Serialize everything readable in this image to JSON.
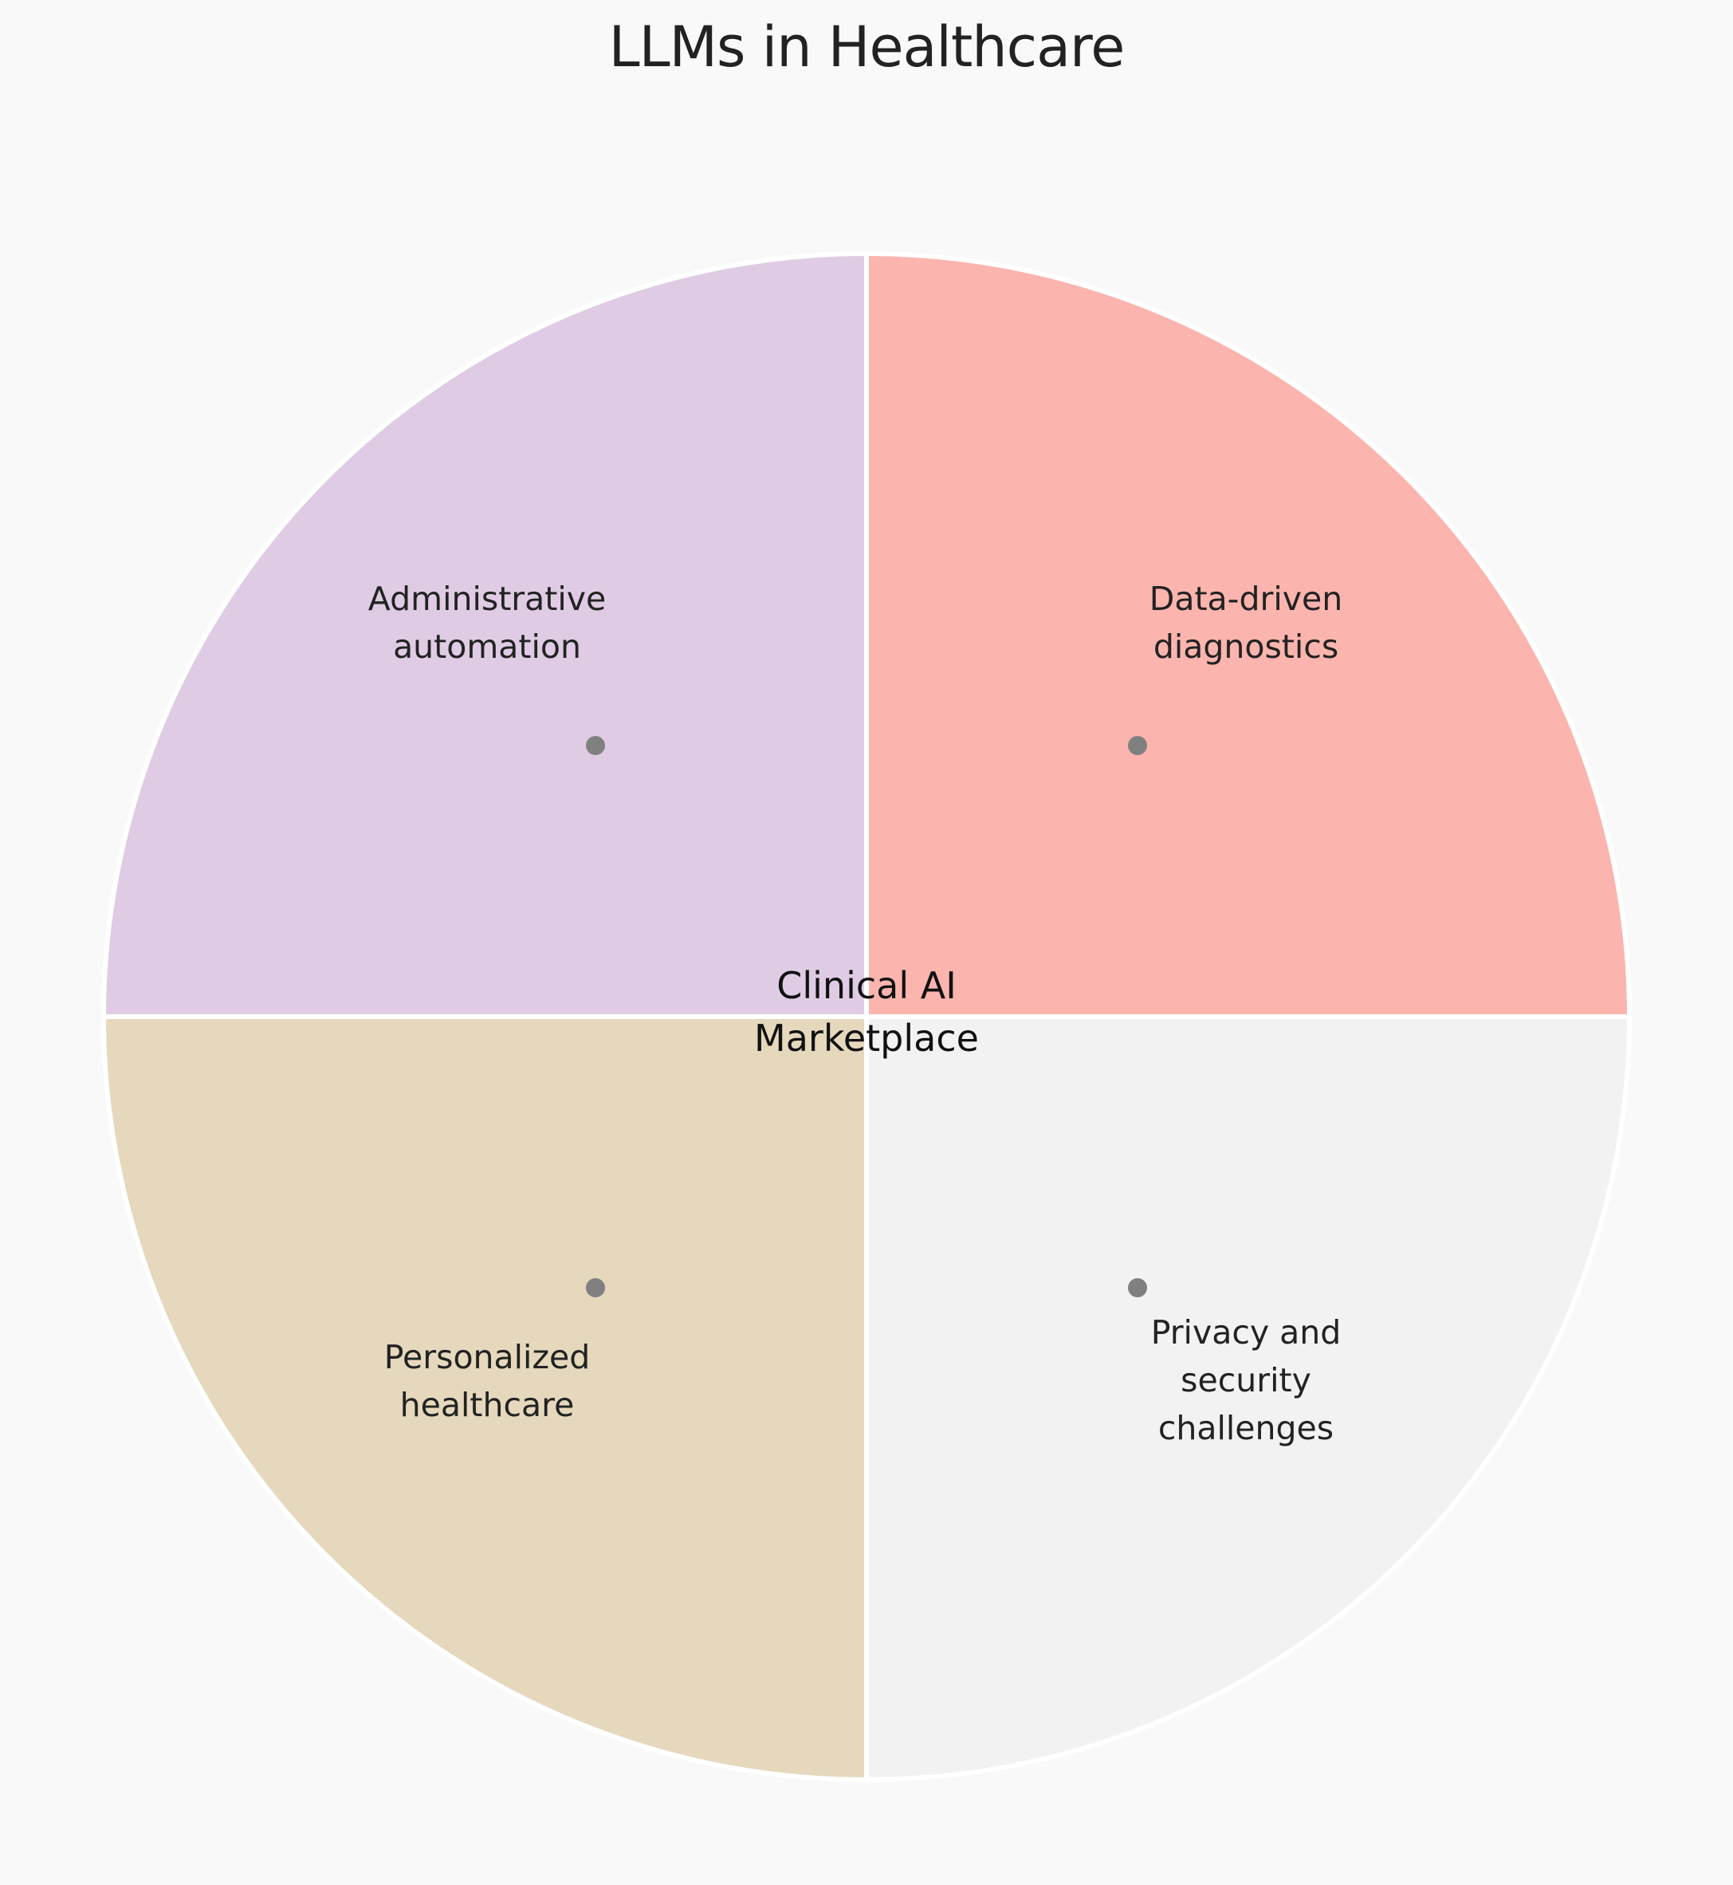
{
  "title": "LLMs in Healthcare",
  "center_label": [
    "Clinical AI",
    "Marketplace"
  ],
  "quadrants": [
    {
      "id": "top-left",
      "label": [
        "Administrative",
        "automation"
      ],
      "color": "#dfcce4"
    },
    {
      "id": "top-right",
      "label": [
        "Data-driven",
        "diagnostics"
      ],
      "color": "#fbb4ae"
    },
    {
      "id": "bottom-left",
      "label": [
        "Personalized",
        "healthcare"
      ],
      "color": "#e5d8bd"
    },
    {
      "id": "bottom-right",
      "label": [
        "Privacy and",
        "security",
        "challenges"
      ],
      "color": "#f2f2f2"
    }
  ],
  "colors": {
    "background": "#f9f9f9",
    "divider": "#ffffff",
    "marker": "#808080"
  }
}
